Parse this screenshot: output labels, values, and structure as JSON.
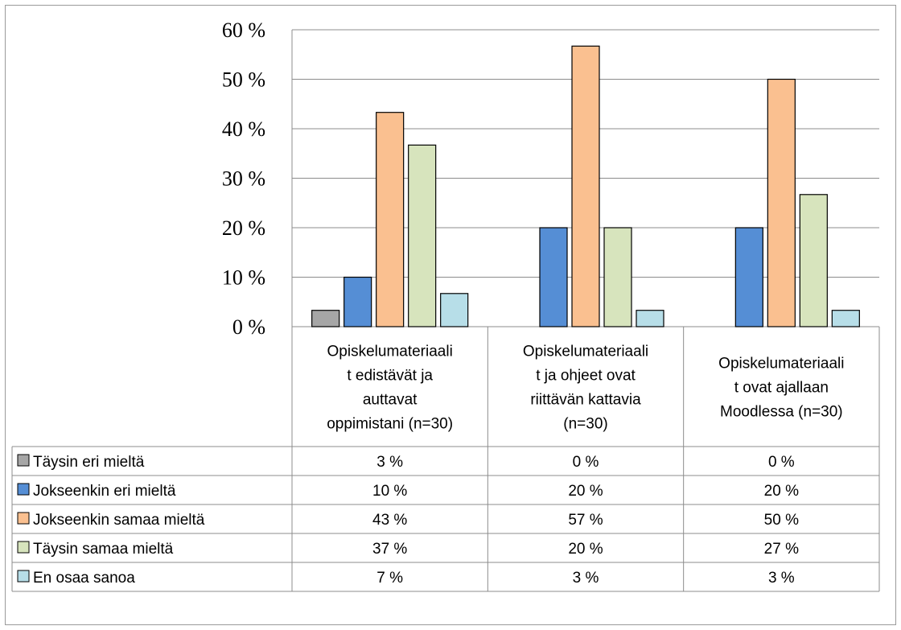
{
  "chart_data": {
    "type": "bar",
    "categories": [
      [
        "Opiskelumateriaali",
        "t edistävät ja",
        "auttavat",
        "oppimistani (n=30)"
      ],
      [
        "Opiskelumateriaali",
        "t ja ohjeet ovat",
        "riittävän kattavia",
        "(n=30)"
      ],
      [
        "Opiskelumateriaali",
        "t ovat ajallaan",
        "Moodlessa (n=30)"
      ]
    ],
    "series": [
      {
        "name": "Täysin eri mieltä",
        "color": "#a6a6a6",
        "values": [
          3.3,
          0,
          0
        ],
        "labels": [
          "3 %",
          "0 %",
          "0 %"
        ]
      },
      {
        "name": "Jokseenkin eri mieltä",
        "color": "#558ed5",
        "values": [
          10,
          20,
          20
        ],
        "labels": [
          "10 %",
          "20 %",
          "20 %"
        ]
      },
      {
        "name": "Jokseenkin samaa mieltä",
        "color": "#fac090",
        "values": [
          43.3,
          56.7,
          50
        ],
        "labels": [
          "43 %",
          "57 %",
          "50 %"
        ]
      },
      {
        "name": "Täysin samaa mieltä",
        "color": "#d7e4bd",
        "values": [
          36.7,
          20,
          26.7
        ],
        "labels": [
          "37 %",
          "20 %",
          "27 %"
        ]
      },
      {
        "name": "En osaa sanoa",
        "color": "#b7dee8",
        "values": [
          6.7,
          3.3,
          3.3
        ],
        "labels": [
          "7 %",
          "3 %",
          "3 %"
        ]
      }
    ],
    "ylim": [
      0,
      60
    ],
    "yticks": [
      0,
      10,
      20,
      30,
      40,
      50,
      60
    ],
    "ytick_labels": [
      "0 %",
      "10 %",
      "20 %",
      "30 %",
      "40 %",
      "50 %",
      "60 %"
    ],
    "grid": true,
    "legend": "data-table"
  }
}
